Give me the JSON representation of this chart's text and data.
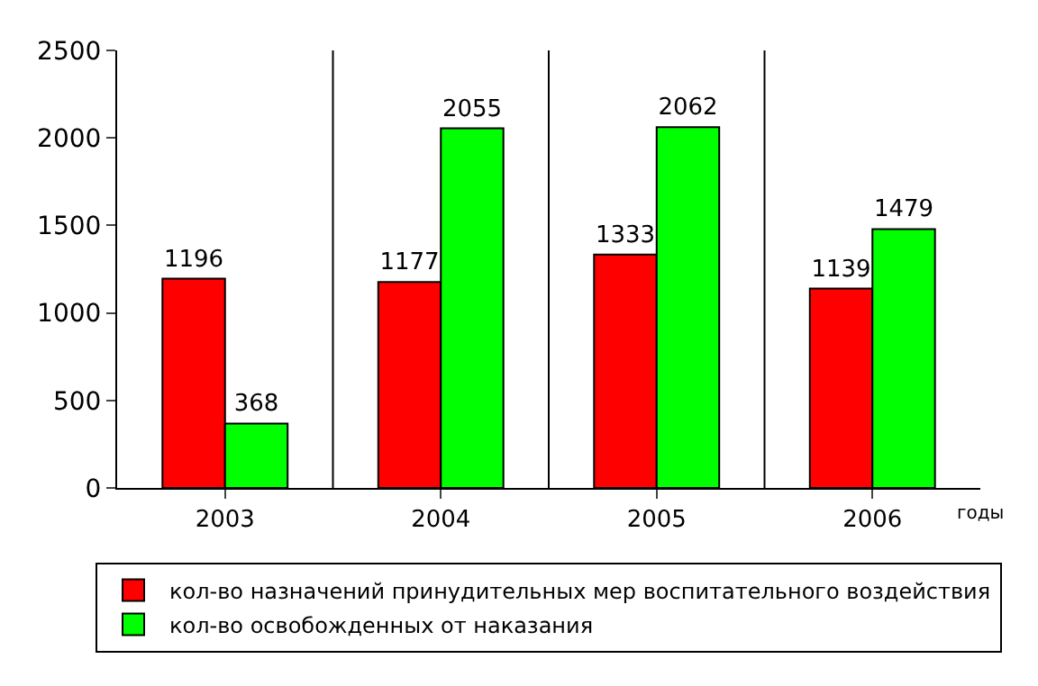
{
  "chart_data": {
    "type": "bar",
    "categories": [
      "2003",
      "2004",
      "2005",
      "2006"
    ],
    "series": [
      {
        "name": "кол-во назначений принудительных мер воспитательного воздействия",
        "color": "#ff0000",
        "values": [
          1196,
          1177,
          1333,
          1139
        ]
      },
      {
        "name": "кол-во освобожденных от наказания",
        "color": "#00ff00",
        "values": [
          368,
          2055,
          2062,
          1479
        ]
      }
    ],
    "xlabel": "годы",
    "ylim": [
      0,
      2500
    ],
    "yticks": [
      0,
      500,
      1000,
      1500,
      2000,
      2500
    ],
    "grid": "x",
    "legend": "bottom",
    "data_labels": true
  }
}
